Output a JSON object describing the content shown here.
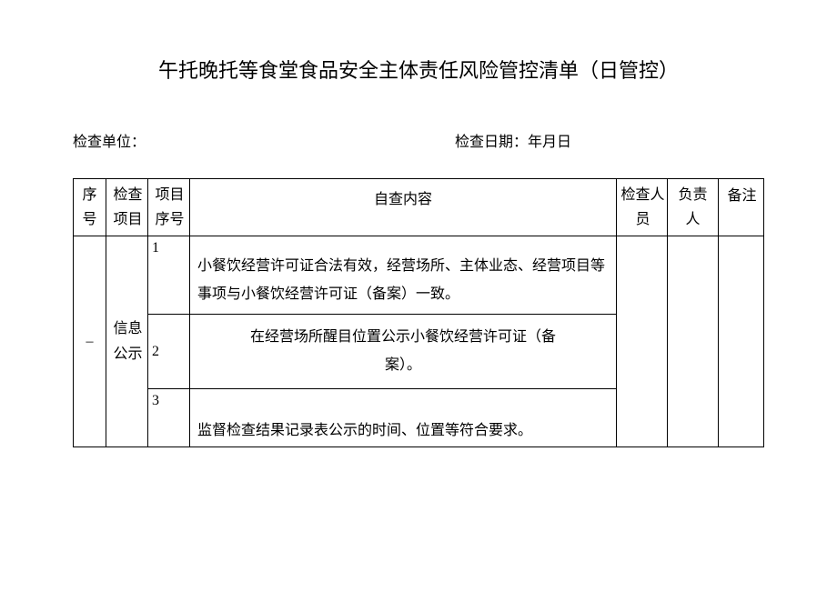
{
  "title": "午托晚托等食堂食品安全主体责任风险管控清单（日管控）",
  "meta": {
    "unit_label": "检查单位：",
    "date_label": "检查日期：年月日"
  },
  "headers": {
    "seq": "序号",
    "seq_l1": "序",
    "seq_l2": "号",
    "item": "检查项目",
    "item_l1": "检查",
    "item_l2": "项目",
    "subseq": "项目序号",
    "subseq_l1": "项目",
    "subseq_l2": "序号",
    "content": "自查内容",
    "inspector": "检查人员",
    "inspector_l1": "检查人",
    "inspector_l2": "员",
    "responsible": "负责人",
    "responsible_l1": "负责",
    "responsible_l2": "人",
    "remark": "备注"
  },
  "rows": {
    "group1": {
      "seq": "–",
      "item_l1": "信息",
      "item_l2": "公示",
      "sub1": {
        "num": "1",
        "content": "小餐饮经营许可证合法有效，经营场所、主体业态、经营项目等事项与小餐饮经营许可证（备案）一致。"
      },
      "sub2": {
        "num": "2",
        "content_l1": "在经营场所醒目位置公示小餐饮经营许可证（备",
        "content_l2": "案）。"
      },
      "sub3": {
        "num": "3",
        "content": "监督检查结果记录表公示的时间、位置等符合要求。"
      }
    }
  },
  "style": {
    "page_bg": "#ffffff",
    "text_color": "#000000",
    "border_color": "#000000",
    "title_fontsize": 22,
    "body_fontsize": 16
  }
}
